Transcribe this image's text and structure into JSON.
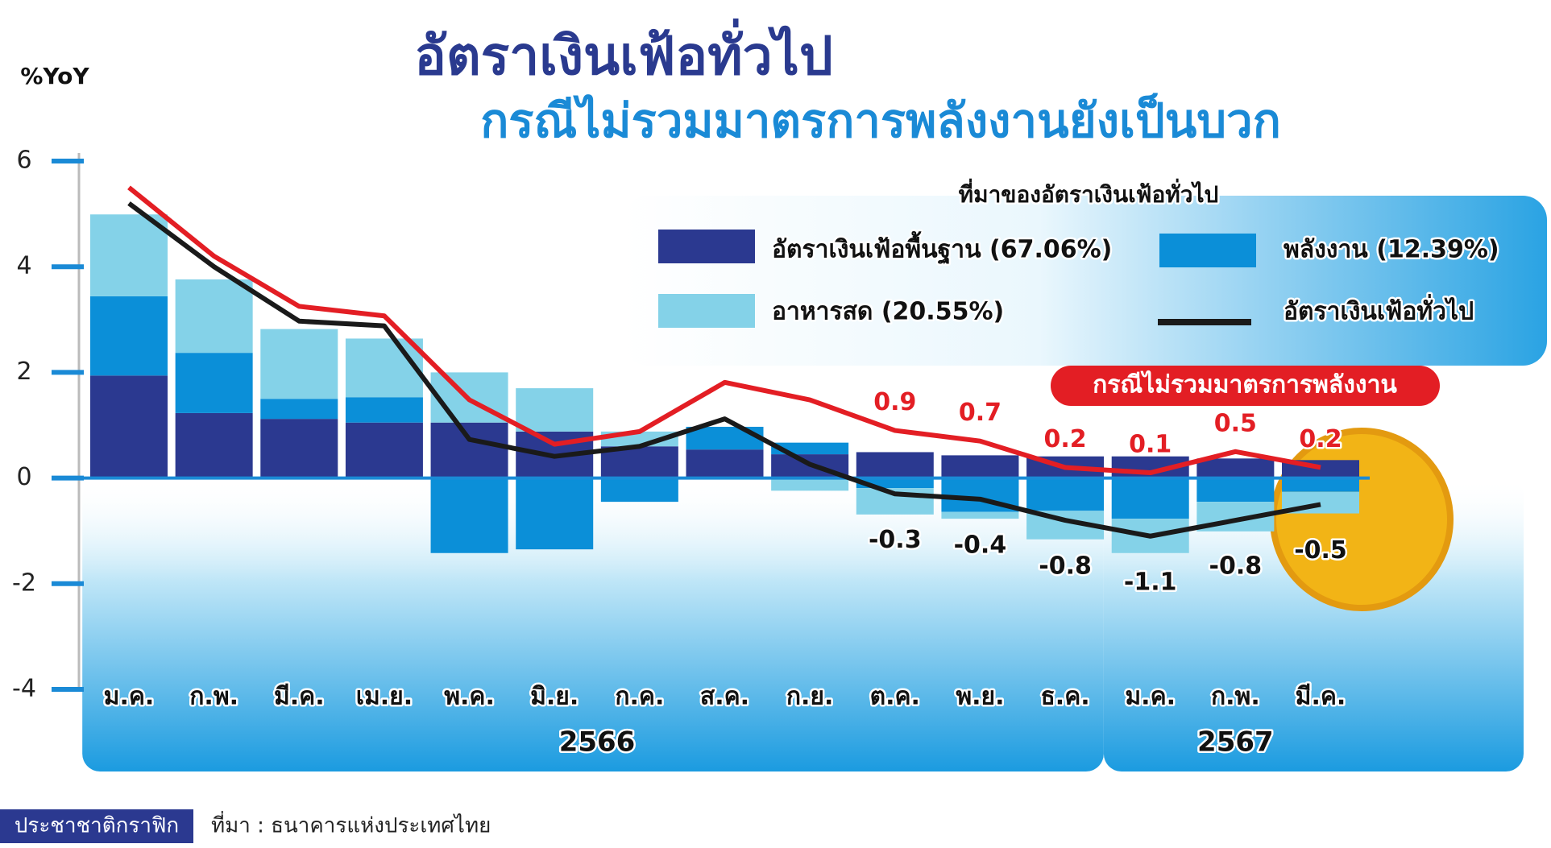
{
  "chart_data": {
    "type": "stacked_bar_line",
    "title": "อัตราเงินเฟ้อทั่วไป",
    "subtitle": "กรณีไม่รวมมาตรการพลังงานยังเป็นบวก",
    "y_label": "%YoY",
    "legend_title": "ที่มาของอัตราเงินเฟ้อทั่วไป",
    "categories": [
      "ม.ค.",
      "ก.พ.",
      "มี.ค.",
      "เม.ย.",
      "พ.ค.",
      "มิ.ย.",
      "ก.ค.",
      "ส.ค.",
      "ก.ย.",
      "ต.ค.",
      "พ.ย.",
      "ธ.ค.",
      "ม.ค.",
      "ก.พ.",
      "มี.ค."
    ],
    "year_groups": [
      "2566",
      "2567"
    ],
    "ylim": [
      -4,
      6
    ],
    "yticks": [
      -4,
      -2,
      0,
      2,
      4,
      6
    ],
    "series": [
      {
        "name": "อัตราเงินเฟ้อพื้นฐาน (67.06%)",
        "kind": "bar",
        "color": "#2b3990",
        "values": [
          1.94,
          1.23,
          1.12,
          1.05,
          1.05,
          0.88,
          0.6,
          0.54,
          0.45,
          0.49,
          0.43,
          0.41,
          0.41,
          0.37,
          0.34
        ]
      },
      {
        "name": "พลังงาน (12.39%)",
        "kind": "bar",
        "color": "#0b8fd8",
        "values": [
          1.5,
          1.14,
          0.38,
          0.48,
          -1.42,
          -1.35,
          -0.45,
          0.43,
          0.22,
          -0.19,
          -0.64,
          -0.62,
          -0.77,
          -0.45,
          -0.26
        ]
      },
      {
        "name": "อาหารสด (20.55%)",
        "kind": "bar",
        "color": "#84d2e8",
        "values": [
          1.55,
          1.39,
          1.32,
          1.11,
          0.95,
          0.82,
          0.28,
          0.0,
          -0.24,
          -0.5,
          -0.13,
          -0.54,
          -0.65,
          -0.56,
          -0.41
        ]
      },
      {
        "name": "อัตราเงินเฟ้อทั่วไป",
        "kind": "line",
        "color": "#1a1a1a",
        "label_side": "below",
        "values": [
          5.2,
          4.0,
          2.97,
          2.88,
          0.73,
          0.41,
          0.6,
          1.12,
          0.26,
          -0.3,
          -0.4,
          -0.8,
          -1.1,
          -0.8,
          -0.5
        ],
        "value_labels": [
          null,
          null,
          null,
          null,
          null,
          null,
          null,
          null,
          null,
          "-0.3",
          "-0.4",
          "-0.8",
          "-1.1",
          "-0.8",
          "-0.5"
        ]
      },
      {
        "name": "กรณีไม่รวมมาตรการพลังงาน",
        "kind": "line",
        "color": "#e31e24",
        "label_side": "above",
        "values": [
          5.5,
          4.2,
          3.25,
          3.07,
          1.48,
          0.64,
          0.88,
          1.81,
          1.48,
          0.9,
          0.7,
          0.2,
          0.1,
          0.5,
          0.2
        ],
        "value_labels": [
          null,
          null,
          null,
          null,
          null,
          null,
          null,
          null,
          null,
          "0.9",
          "0.7",
          "0.2",
          "0.1",
          "0.5",
          "0.2"
        ]
      }
    ]
  },
  "footer": {
    "brand": "ประชาชาติกราฟิก",
    "source": "ที่มา : ธนาคารแห่งประเทศไทย"
  }
}
